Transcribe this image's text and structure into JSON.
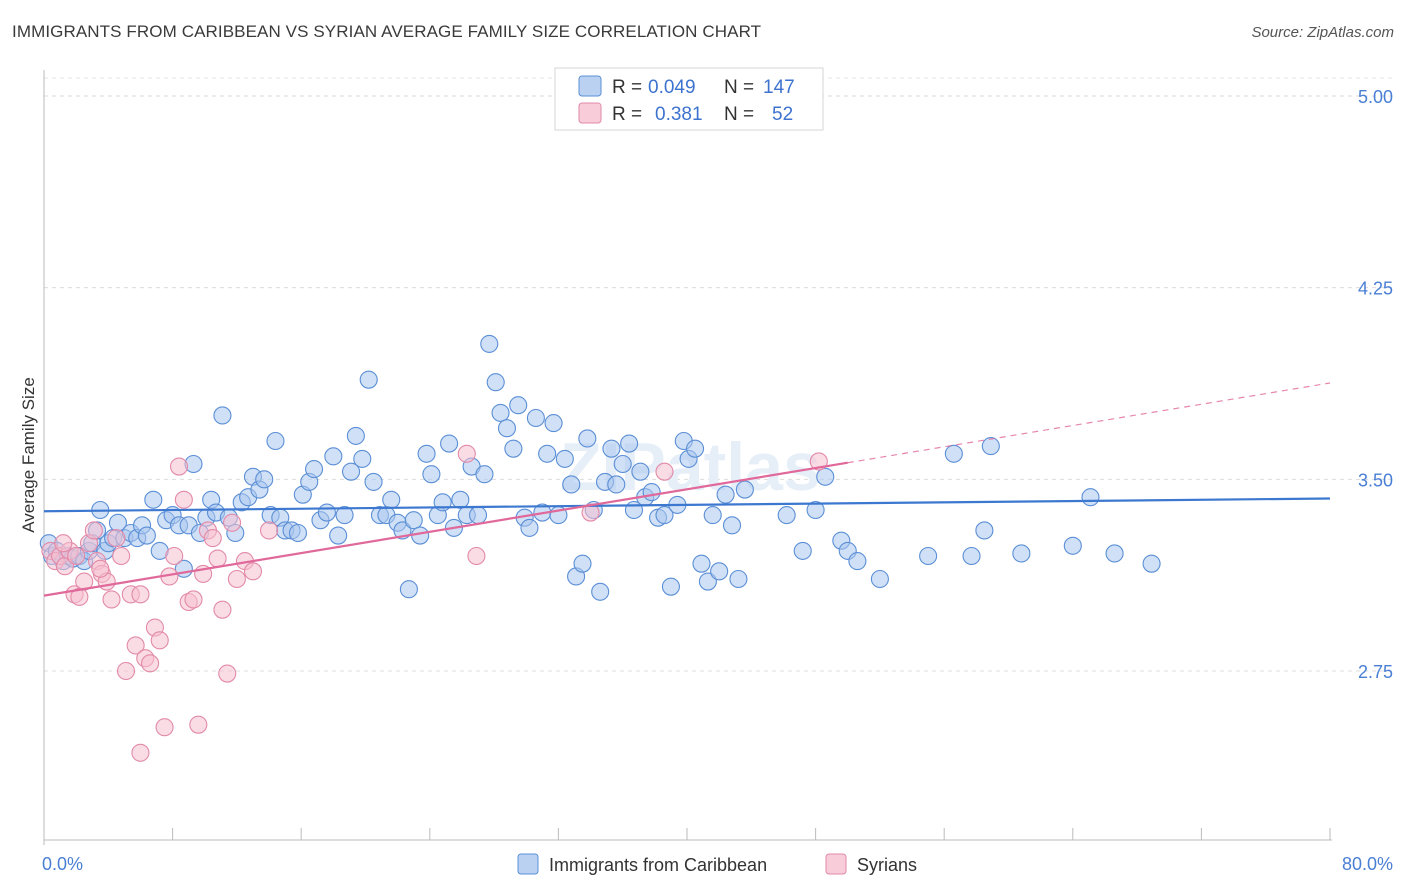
{
  "title": "IMMIGRANTS FROM CARIBBEAN VS SYRIAN AVERAGE FAMILY SIZE CORRELATION CHART",
  "source": "Source: ZipAtlas.com",
  "watermark": "ZIPatlas",
  "colors": {
    "blue_fill": "#a9c6ee",
    "blue_stroke": "#5b8fd6",
    "blue_line": "#3d78d0",
    "pink_fill": "#f6bfd0",
    "pink_stroke": "#e28aa8",
    "pink_line": "#e0689a",
    "tick_text": "#4a7fd4"
  },
  "legend": {
    "rows": [
      {
        "r_label": "R =",
        "r_value": "0.049",
        "n_label": "N =",
        "n_value": "147"
      },
      {
        "r_label": "R =",
        "r_value": "0.381",
        "n_label": "N =",
        "n_value": "52"
      }
    ]
  },
  "chart_data": {
    "type": "scatter",
    "xlabel": "",
    "ylabel": "Average Family Size",
    "xlim": [
      0,
      80
    ],
    "ylim": [
      2.2,
      5.1
    ],
    "x_tick_labels": [
      "0.0%",
      "80.0%"
    ],
    "y_ticks": [
      2.75,
      3.5,
      4.25,
      5.0
    ],
    "y_tick_labels": [
      "2.75",
      "3.50",
      "4.25",
      "5.00"
    ],
    "grid": "horizontal dashed",
    "legend_placement": "top-center",
    "series": [
      {
        "name": "Immigrants from Caribbean",
        "color": "blue",
        "trend": {
          "x": [
            0,
            80
          ],
          "y": [
            3.375,
            3.425
          ]
        },
        "points": [
          [
            0.3,
            3.25
          ],
          [
            0.5,
            3.2
          ],
          [
            0.8,
            3.22
          ],
          [
            1.2,
            3.18
          ],
          [
            1.5,
            3.2
          ],
          [
            1.8,
            3.19
          ],
          [
            2.2,
            3.2
          ],
          [
            2.5,
            3.18
          ],
          [
            2.8,
            3.22
          ],
          [
            3.0,
            3.25
          ],
          [
            3.3,
            3.3
          ],
          [
            3.5,
            3.38
          ],
          [
            3.8,
            3.22
          ],
          [
            4.0,
            3.25
          ],
          [
            4.3,
            3.27
          ],
          [
            4.6,
            3.33
          ],
          [
            5.0,
            3.27
          ],
          [
            5.4,
            3.29
          ],
          [
            5.8,
            3.27
          ],
          [
            6.1,
            3.32
          ],
          [
            6.4,
            3.28
          ],
          [
            6.8,
            3.42
          ],
          [
            7.2,
            3.22
          ],
          [
            7.6,
            3.34
          ],
          [
            8.0,
            3.36
          ],
          [
            8.4,
            3.32
          ],
          [
            8.7,
            3.15
          ],
          [
            9.0,
            3.32
          ],
          [
            9.3,
            3.56
          ],
          [
            9.7,
            3.29
          ],
          [
            10.1,
            3.35
          ],
          [
            10.4,
            3.42
          ],
          [
            10.7,
            3.37
          ],
          [
            11.1,
            3.75
          ],
          [
            11.5,
            3.35
          ],
          [
            11.9,
            3.29
          ],
          [
            12.3,
            3.41
          ],
          [
            12.7,
            3.43
          ],
          [
            13.0,
            3.51
          ],
          [
            13.4,
            3.46
          ],
          [
            13.7,
            3.5
          ],
          [
            14.1,
            3.36
          ],
          [
            14.4,
            3.65
          ],
          [
            14.7,
            3.35
          ],
          [
            15.0,
            3.3
          ],
          [
            15.4,
            3.3
          ],
          [
            15.8,
            3.29
          ],
          [
            16.1,
            3.44
          ],
          [
            16.5,
            3.49
          ],
          [
            16.8,
            3.54
          ],
          [
            17.2,
            3.34
          ],
          [
            17.6,
            3.37
          ],
          [
            18.0,
            3.59
          ],
          [
            18.3,
            3.28
          ],
          [
            18.7,
            3.36
          ],
          [
            19.1,
            3.53
          ],
          [
            19.4,
            3.67
          ],
          [
            19.8,
            3.58
          ],
          [
            20.2,
            3.89
          ],
          [
            20.5,
            3.49
          ],
          [
            20.9,
            3.36
          ],
          [
            21.3,
            3.36
          ],
          [
            21.6,
            3.42
          ],
          [
            22.0,
            3.33
          ],
          [
            22.3,
            3.3
          ],
          [
            22.7,
            3.07
          ],
          [
            23.0,
            3.34
          ],
          [
            23.4,
            3.28
          ],
          [
            23.8,
            3.6
          ],
          [
            24.1,
            3.52
          ],
          [
            24.5,
            3.36
          ],
          [
            24.8,
            3.41
          ],
          [
            25.2,
            3.64
          ],
          [
            25.5,
            3.31
          ],
          [
            25.9,
            3.42
          ],
          [
            26.3,
            3.36
          ],
          [
            26.6,
            3.55
          ],
          [
            27.0,
            3.36
          ],
          [
            27.4,
            3.52
          ],
          [
            27.7,
            4.03
          ],
          [
            28.1,
            3.88
          ],
          [
            28.4,
            3.76
          ],
          [
            28.8,
            3.7
          ],
          [
            29.2,
            3.62
          ],
          [
            29.5,
            3.79
          ],
          [
            29.9,
            3.35
          ],
          [
            30.2,
            3.31
          ],
          [
            30.6,
            3.74
          ],
          [
            31.0,
            3.37
          ],
          [
            31.3,
            3.6
          ],
          [
            31.7,
            3.72
          ],
          [
            32.0,
            3.36
          ],
          [
            32.4,
            3.58
          ],
          [
            32.8,
            3.48
          ],
          [
            33.1,
            3.12
          ],
          [
            33.5,
            3.17
          ],
          [
            33.8,
            3.66
          ],
          [
            34.2,
            3.38
          ],
          [
            34.6,
            3.06
          ],
          [
            34.9,
            3.49
          ],
          [
            35.3,
            3.62
          ],
          [
            35.6,
            3.48
          ],
          [
            36.0,
            3.56
          ],
          [
            36.4,
            3.64
          ],
          [
            36.7,
            3.38
          ],
          [
            37.1,
            3.53
          ],
          [
            37.4,
            3.43
          ],
          [
            37.8,
            3.45
          ],
          [
            38.2,
            3.35
          ],
          [
            38.6,
            3.36
          ],
          [
            39.0,
            3.08
          ],
          [
            39.4,
            3.4
          ],
          [
            39.8,
            3.65
          ],
          [
            40.1,
            3.58
          ],
          [
            40.5,
            3.62
          ],
          [
            40.9,
            3.17
          ],
          [
            41.3,
            3.1
          ],
          [
            41.6,
            3.36
          ],
          [
            42.0,
            3.14
          ],
          [
            42.4,
            3.44
          ],
          [
            42.8,
            3.32
          ],
          [
            43.2,
            3.11
          ],
          [
            43.6,
            3.46
          ],
          [
            46.2,
            3.36
          ],
          [
            47.2,
            3.22
          ],
          [
            48.0,
            3.38
          ],
          [
            48.6,
            3.51
          ],
          [
            49.6,
            3.26
          ],
          [
            50.0,
            3.22
          ],
          [
            50.6,
            3.18
          ],
          [
            52.0,
            3.11
          ],
          [
            55.0,
            3.2
          ],
          [
            56.6,
            3.6
          ],
          [
            57.7,
            3.2
          ],
          [
            58.5,
            3.3
          ],
          [
            58.9,
            3.63
          ],
          [
            60.8,
            3.21
          ],
          [
            64.0,
            3.24
          ],
          [
            65.1,
            3.43
          ],
          [
            66.6,
            3.21
          ],
          [
            68.9,
            3.17
          ]
        ]
      },
      {
        "name": "Syrians",
        "color": "pink",
        "trend": {
          "x": [
            0,
            50
          ],
          "y": [
            3.045,
            3.565
          ]
        },
        "trend_dashed": {
          "x": [
            50,
            80
          ],
          "y": [
            3.565,
            3.877
          ]
        },
        "points": [
          [
            0.4,
            3.22
          ],
          [
            0.7,
            3.18
          ],
          [
            1.0,
            3.2
          ],
          [
            1.3,
            3.16
          ],
          [
            1.6,
            3.22
          ],
          [
            1.9,
            3.05
          ],
          [
            2.2,
            3.04
          ],
          [
            2.5,
            3.1
          ],
          [
            2.8,
            3.25
          ],
          [
            3.1,
            3.3
          ],
          [
            3.3,
            3.18
          ],
          [
            3.6,
            3.13
          ],
          [
            3.9,
            3.1
          ],
          [
            4.2,
            3.03
          ],
          [
            4.5,
            3.27
          ],
          [
            4.8,
            3.2
          ],
          [
            5.1,
            2.75
          ],
          [
            5.4,
            3.05
          ],
          [
            5.7,
            2.85
          ],
          [
            6.0,
            2.43
          ],
          [
            6.3,
            2.8
          ],
          [
            6.6,
            2.78
          ],
          [
            6.9,
            2.92
          ],
          [
            7.2,
            2.87
          ],
          [
            7.5,
            2.53
          ],
          [
            7.8,
            3.12
          ],
          [
            8.1,
            3.2
          ],
          [
            8.4,
            3.55
          ],
          [
            8.7,
            3.42
          ],
          [
            9.0,
            3.02
          ],
          [
            9.3,
            3.03
          ],
          [
            9.6,
            2.54
          ],
          [
            9.9,
            3.13
          ],
          [
            10.2,
            3.3
          ],
          [
            10.5,
            3.27
          ],
          [
            10.8,
            3.19
          ],
          [
            11.1,
            2.99
          ],
          [
            11.4,
            2.74
          ],
          [
            11.7,
            3.33
          ],
          [
            12.0,
            3.11
          ],
          [
            12.5,
            3.18
          ],
          [
            13.0,
            3.14
          ],
          [
            14.0,
            3.3
          ],
          [
            26.3,
            3.6
          ],
          [
            26.9,
            3.2
          ],
          [
            34.0,
            3.37
          ],
          [
            38.6,
            3.53
          ],
          [
            48.2,
            3.57
          ],
          [
            3.5,
            3.15
          ],
          [
            2.0,
            3.2
          ],
          [
            1.2,
            3.25
          ],
          [
            6.0,
            3.05
          ]
        ]
      }
    ]
  },
  "bottom_legend": [
    {
      "label": "Immigrants from Caribbean"
    },
    {
      "label": "Syrians"
    }
  ]
}
